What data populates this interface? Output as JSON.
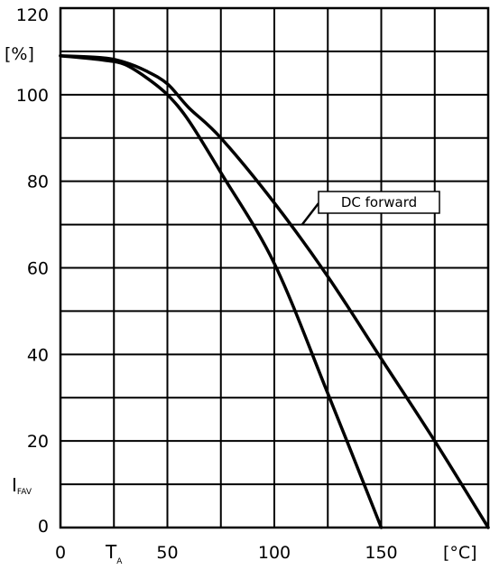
{
  "chart_data": {
    "type": "line",
    "title": "",
    "xlabel": "",
    "ylabel": "",
    "x_unit_label": "[°C]",
    "y_unit_label": "[%]",
    "y_symbol": "I",
    "y_symbol_sub": "FAV",
    "x_symbol": "T",
    "x_symbol_sub": "A",
    "xlim": [
      0,
      200
    ],
    "ylim": [
      0,
      120
    ],
    "grid": true,
    "x_gridlines": [
      0,
      25,
      50,
      75,
      100,
      125,
      150,
      175,
      200
    ],
    "y_gridlines": [
      0,
      10,
      20,
      30,
      40,
      50,
      60,
      70,
      80,
      90,
      100,
      110,
      120
    ],
    "x_ticks": [
      {
        "value": 0,
        "label": "0"
      },
      {
        "value": 50,
        "label": "50"
      },
      {
        "value": 100,
        "label": "100"
      },
      {
        "value": 150,
        "label": "150"
      }
    ],
    "y_ticks": [
      {
        "value": 0,
        "label": "0"
      },
      {
        "value": 20,
        "label": "20"
      },
      {
        "value": 40,
        "label": "40"
      },
      {
        "value": 60,
        "label": "60"
      },
      {
        "value": 80,
        "label": "80"
      },
      {
        "value": 100,
        "label": "100"
      },
      {
        "value": 120,
        "label": "120"
      }
    ],
    "series": [
      {
        "name": "DC forward",
        "x": [
          0,
          20,
          30,
          40,
          50,
          60,
          75,
          100,
          125,
          150,
          175,
          200
        ],
        "y": [
          109,
          108.5,
          107.5,
          105.5,
          102.5,
          97,
          90,
          75,
          58,
          39,
          20,
          0
        ]
      },
      {
        "x": [
          0,
          20,
          30,
          40,
          50,
          60,
          75,
          100,
          125,
          150
        ],
        "y": [
          109,
          108,
          107,
          104,
          100,
          94,
          82,
          61,
          31,
          0
        ]
      }
    ],
    "annotations": [
      {
        "text": "DC forward",
        "target_series": 0,
        "x": 113,
        "y": 70
      }
    ]
  }
}
